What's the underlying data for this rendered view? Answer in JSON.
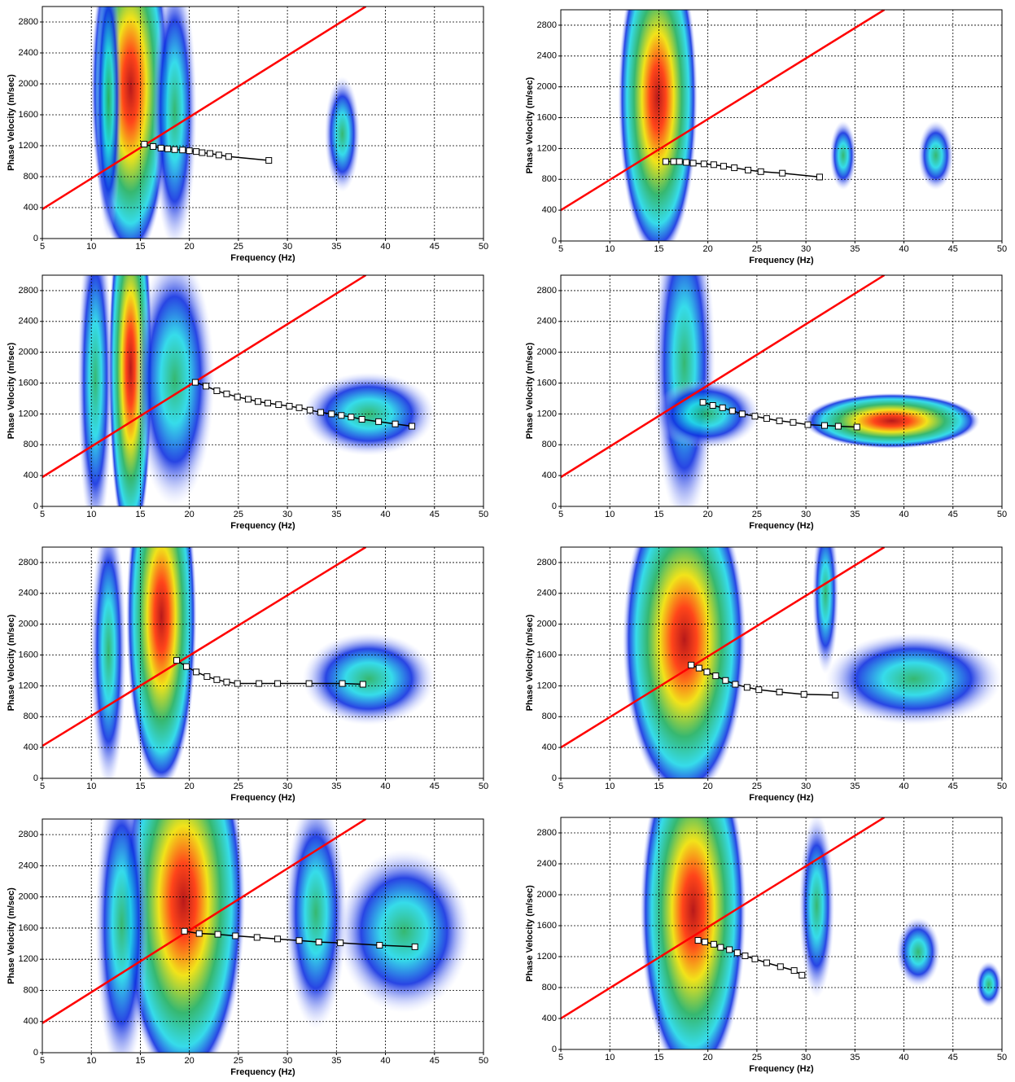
{
  "chart_data": [
    {
      "type": "line",
      "xlabel": "Frequency (Hz)",
      "ylabel": "Phase Velocity (m/sec)",
      "xlim": [
        5,
        50
      ],
      "ylim": [
        0,
        3000
      ],
      "xticks": [
        5,
        10,
        15,
        20,
        25,
        30,
        35,
        40,
        45,
        50
      ],
      "yticks": [
        0,
        400,
        800,
        1200,
        1600,
        2000,
        2400,
        2800
      ],
      "grid": true,
      "series": [
        {
          "color": "#ff0000",
          "x": [
            5,
            38
          ],
          "values": [
            380,
            3000
          ]
        },
        {
          "color": "#000000",
          "x": [
            15.4,
            16.3,
            17.1,
            17.8,
            18.5,
            19.3,
            20.0,
            20.7,
            21.3,
            22.1,
            23.0,
            24.0,
            28.1
          ],
          "values": [
            1220,
            1190,
            1170,
            1160,
            1150,
            1145,
            1135,
            1125,
            1110,
            1100,
            1080,
            1060,
            1010
          ]
        }
      ]
    },
    {
      "type": "line",
      "xlabel": "Frequency (Hz)",
      "ylabel": "Phase Velocity (m/sec)",
      "xlim": [
        5,
        50
      ],
      "ylim": [
        0,
        3000
      ],
      "xticks": [
        5,
        10,
        15,
        20,
        25,
        30,
        35,
        40,
        45,
        50
      ],
      "yticks": [
        0,
        400,
        800,
        1200,
        1600,
        2000,
        2400,
        2800
      ],
      "grid": true,
      "series": [
        {
          "color": "#ff0000",
          "x": [
            5,
            38
          ],
          "values": [
            400,
            3000
          ]
        },
        {
          "color": "#000000",
          "x": [
            15.7,
            16.5,
            17.1,
            17.8,
            18.5,
            19.6,
            20.6,
            21.6,
            22.7,
            24.1,
            25.4,
            27.6,
            31.4
          ],
          "values": [
            1030,
            1030,
            1030,
            1020,
            1010,
            1000,
            990,
            970,
            950,
            920,
            900,
            880,
            830
          ]
        }
      ]
    },
    {
      "type": "line",
      "xlabel": "Frequency (Hz)",
      "ylabel": "Phase Velocity (m/sec)",
      "xlim": [
        5,
        50
      ],
      "ylim": [
        0,
        3000
      ],
      "xticks": [
        5,
        10,
        15,
        20,
        25,
        30,
        35,
        40,
        45,
        50
      ],
      "yticks": [
        0,
        400,
        800,
        1200,
        1600,
        2000,
        2400,
        2800
      ],
      "grid": true,
      "series": [
        {
          "color": "#ff0000",
          "x": [
            5,
            38
          ],
          "values": [
            380,
            3000
          ]
        },
        {
          "color": "#000000",
          "x": [
            20.6,
            21.7,
            22.8,
            23.8,
            24.9,
            26.0,
            27.0,
            28.0,
            29.1,
            30.2,
            31.2,
            32.3,
            33.4,
            34.5,
            35.5,
            36.5,
            37.6,
            39.3,
            41.0,
            42.7
          ],
          "values": [
            1610,
            1560,
            1500,
            1460,
            1420,
            1390,
            1360,
            1340,
            1320,
            1300,
            1280,
            1250,
            1220,
            1200,
            1180,
            1160,
            1130,
            1100,
            1070,
            1040
          ]
        }
      ]
    },
    {
      "type": "line",
      "xlabel": "Frequency (Hz)",
      "ylabel": "Phase Velocity (m/sec)",
      "xlim": [
        5,
        50
      ],
      "ylim": [
        0,
        3000
      ],
      "xticks": [
        5,
        10,
        15,
        20,
        25,
        30,
        35,
        40,
        45,
        50
      ],
      "yticks": [
        0,
        400,
        800,
        1200,
        1600,
        2000,
        2400,
        2800
      ],
      "grid": true,
      "series": [
        {
          "color": "#ff0000",
          "x": [
            5,
            38
          ],
          "values": [
            380,
            3000
          ]
        },
        {
          "color": "#000000",
          "x": [
            19.5,
            20.5,
            21.5,
            22.5,
            23.5,
            24.8,
            26.0,
            27.3,
            28.7,
            30.2,
            31.9,
            33.3,
            35.2
          ],
          "values": [
            1350,
            1310,
            1280,
            1240,
            1200,
            1170,
            1140,
            1110,
            1090,
            1060,
            1050,
            1040,
            1030
          ]
        }
      ]
    },
    {
      "type": "line",
      "xlabel": "Frequency (Hz)",
      "ylabel": "Phase Velocity (m/sec)",
      "xlim": [
        5,
        50
      ],
      "ylim": [
        0,
        3000
      ],
      "xticks": [
        5,
        10,
        15,
        20,
        25,
        30,
        35,
        40,
        45,
        50
      ],
      "yticks": [
        0,
        400,
        800,
        1200,
        1600,
        2000,
        2400,
        2800
      ],
      "grid": true,
      "series": [
        {
          "color": "#ff0000",
          "x": [
            5,
            38
          ],
          "values": [
            420,
            3000
          ]
        },
        {
          "color": "#000000",
          "x": [
            18.7,
            19.7,
            20.7,
            21.8,
            22.8,
            23.8,
            24.9,
            27.1,
            29.0,
            32.2,
            35.6,
            37.7
          ],
          "values": [
            1530,
            1450,
            1380,
            1320,
            1280,
            1250,
            1230,
            1230,
            1230,
            1230,
            1230,
            1220
          ]
        }
      ]
    },
    {
      "type": "line",
      "xlabel": "Frequency (Hz)",
      "ylabel": "Phase Velocity (m/sec)",
      "xlim": [
        5,
        50
      ],
      "ylim": [
        0,
        3000
      ],
      "xticks": [
        5,
        10,
        15,
        20,
        25,
        30,
        35,
        40,
        45,
        50
      ],
      "yticks": [
        0,
        400,
        800,
        1200,
        1600,
        2000,
        2400,
        2800
      ],
      "grid": true,
      "series": [
        {
          "color": "#ff0000",
          "x": [
            5,
            38
          ],
          "values": [
            400,
            3000
          ]
        },
        {
          "color": "#000000",
          "x": [
            18.3,
            19.1,
            19.9,
            20.8,
            21.8,
            22.8,
            24.0,
            25.2,
            27.3,
            29.8,
            33.0
          ],
          "values": [
            1470,
            1430,
            1380,
            1330,
            1270,
            1220,
            1180,
            1150,
            1120,
            1090,
            1080
          ]
        }
      ]
    },
    {
      "type": "line",
      "xlabel": "Frequency (Hz)",
      "ylabel": "Phase Velocity (m/sec)",
      "xlim": [
        5,
        50
      ],
      "ylim": [
        0,
        3000
      ],
      "xticks": [
        5,
        10,
        15,
        20,
        25,
        30,
        35,
        40,
        45,
        50
      ],
      "yticks": [
        0,
        400,
        800,
        1200,
        1600,
        2000,
        2400,
        2800
      ],
      "grid": true,
      "series": [
        {
          "color": "#ff0000",
          "x": [
            5,
            38
          ],
          "values": [
            380,
            3000
          ]
        },
        {
          "color": "#000000",
          "x": [
            19.5,
            21.0,
            22.9,
            24.7,
            26.9,
            29.0,
            31.2,
            33.2,
            35.4,
            39.4,
            43.0
          ],
          "values": [
            1560,
            1530,
            1520,
            1500,
            1480,
            1460,
            1440,
            1420,
            1410,
            1380,
            1360
          ]
        }
      ]
    },
    {
      "type": "line",
      "xlabel": "Frequency (Hz)",
      "ylabel": "Phase Velocity (m/sec)",
      "xlim": [
        5,
        50
      ],
      "ylim": [
        0,
        3000
      ],
      "xticks": [
        5,
        10,
        15,
        20,
        25,
        30,
        35,
        40,
        45,
        50
      ],
      "yticks": [
        0,
        400,
        800,
        1200,
        1600,
        2000,
        2400,
        2800
      ],
      "grid": true,
      "series": [
        {
          "color": "#ff0000",
          "x": [
            5,
            38
          ],
          "values": [
            400,
            3000
          ]
        },
        {
          "color": "#000000",
          "x": [
            19.0,
            19.7,
            20.6,
            21.3,
            22.2,
            23.0,
            23.8,
            24.8,
            26.0,
            27.4,
            28.8,
            29.6
          ],
          "values": [
            1410,
            1390,
            1360,
            1320,
            1290,
            1250,
            1210,
            1170,
            1120,
            1070,
            1020,
            960
          ]
        }
      ]
    }
  ]
}
